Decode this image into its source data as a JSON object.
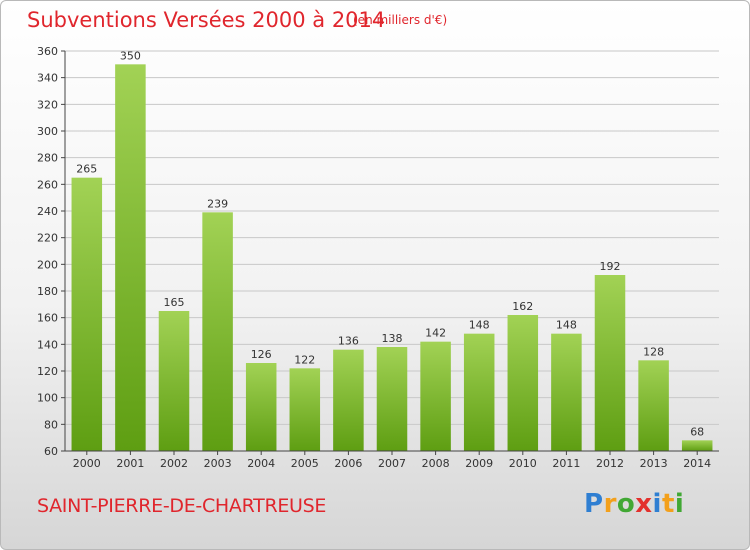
{
  "chart_data": {
    "type": "bar",
    "title": "Subventions Versées 2000 à 2014",
    "subtitle": "(en milliers d'€)",
    "categories": [
      "2000",
      "2001",
      "2002",
      "2003",
      "2004",
      "2005",
      "2006",
      "2007",
      "2008",
      "2009",
      "2010",
      "2011",
      "2012",
      "2013",
      "2014"
    ],
    "values": [
      265,
      350,
      165,
      239,
      126,
      122,
      136,
      138,
      142,
      148,
      162,
      148,
      192,
      128,
      68
    ],
    "ylim": [
      60,
      360
    ],
    "yticks": [
      60,
      80,
      100,
      120,
      140,
      160,
      180,
      200,
      220,
      240,
      260,
      280,
      300,
      320,
      340,
      360
    ],
    "grid": true,
    "colors": {
      "bar_top": "#a2d255",
      "bar_bottom": "#5e9e12",
      "grid": "#c8c8c8"
    }
  },
  "commune": "SAINT-PIERRE-DE-CHARTREUSE",
  "logo": {
    "letters": [
      "P",
      "r",
      "o",
      "x",
      "i",
      "t",
      "i"
    ],
    "colors": [
      "#2f7fd2",
      "#f3a01b",
      "#41a834",
      "#e3312d",
      "#2f7fd2",
      "#f3a01b",
      "#41a834"
    ]
  }
}
